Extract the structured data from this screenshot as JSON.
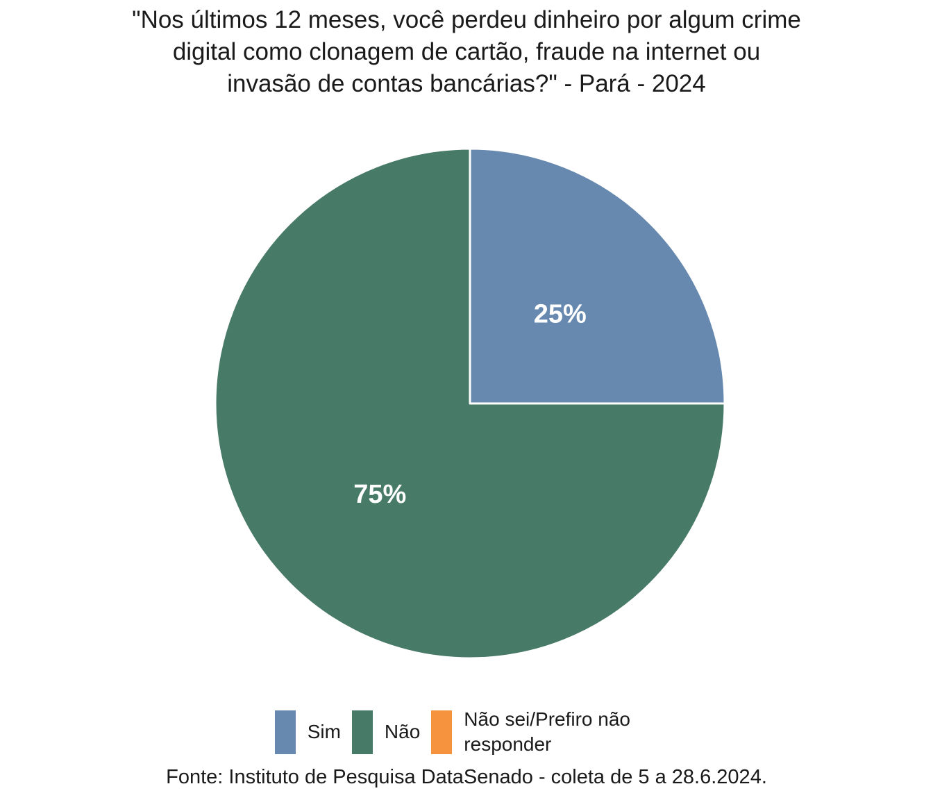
{
  "chart_data": {
    "type": "pie",
    "title": "\"Nos últimos 12 meses, você perdeu dinheiro por algum crime digital como clonagem de cartão, fraude na internet ou invasão de contas bancárias?\" - Pará - 2024",
    "title_display": "\"Nos últimos 12 meses, você perdeu dinheiro por algum crime\ndigital como clonagem de cartão, fraude na internet ou\ninvasão de contas bancárias?\" - Pará - 2024",
    "categories": [
      "Sim",
      "Não",
      "Não sei/Prefiro não responder"
    ],
    "values": [
      25,
      75,
      0
    ],
    "labels": [
      "25%",
      "75%",
      ""
    ],
    "colors": [
      "#6789AF",
      "#487A68",
      "#F6933F"
    ],
    "start_angle_deg": 0,
    "direction": "clockwise",
    "label_radius_ratio": 0.5,
    "label_color": "#FFFFFF",
    "slice_border_color": "#FFFFFF",
    "legend_position": "bottom",
    "source": "Fonte: Instituto de Pesquisa DataSenado - coleta de 5 a 28.6.2024."
  },
  "styles": {
    "background": "#FFFFFF",
    "text_color": "#1A1A1A"
  }
}
